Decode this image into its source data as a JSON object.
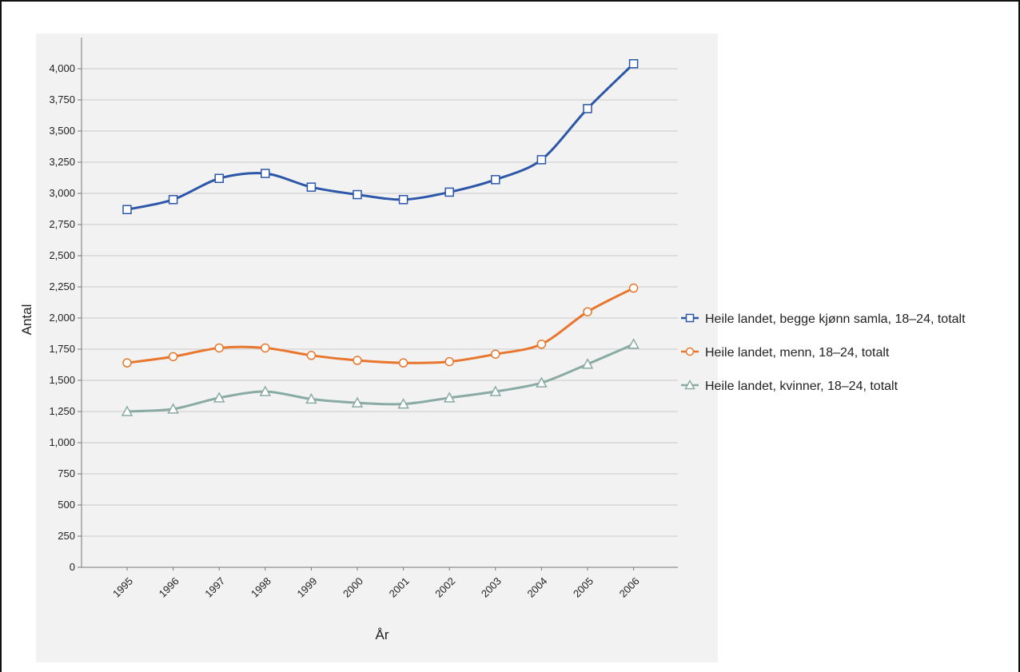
{
  "chart_data": {
    "type": "line",
    "title": "",
    "xlabel": "År",
    "ylabel": "Antal",
    "x": [
      "1995",
      "1996",
      "1997",
      "1998",
      "1999",
      "2000",
      "2001",
      "2002",
      "2003",
      "2004",
      "2005",
      "2006"
    ],
    "ylim": [
      0,
      4250
    ],
    "yticks": [
      0,
      250,
      500,
      750,
      1000,
      1250,
      1500,
      1750,
      2000,
      2250,
      2500,
      2750,
      3000,
      3250,
      3500,
      3750,
      4000
    ],
    "ytick_labels": [
      "0",
      "250",
      "500",
      "750",
      "1,000",
      "1,250",
      "1,500",
      "1,750",
      "2,000",
      "2,250",
      "2,500",
      "2,750",
      "3,000",
      "3,250",
      "3,500",
      "3,750",
      "4,000"
    ],
    "grid": true,
    "legend_position": "right",
    "series": [
      {
        "name": "Heile landet, begge kjønn samla, 18–24, totalt",
        "color": "#2c56a8",
        "marker": "square",
        "values": [
          2870,
          2950,
          3120,
          3160,
          3050,
          2990,
          2950,
          3010,
          3110,
          3270,
          3680,
          4040
        ]
      },
      {
        "name": "Heile landet, menn, 18–24, totalt",
        "color": "#e8762d",
        "marker": "circle",
        "values": [
          1640,
          1690,
          1760,
          1760,
          1700,
          1660,
          1640,
          1650,
          1710,
          1790,
          2050,
          2240
        ]
      },
      {
        "name": "Heile landet, kvinner, 18–24, totalt",
        "color": "#8aaba3",
        "marker": "triangle",
        "values": [
          1250,
          1270,
          1360,
          1410,
          1350,
          1320,
          1310,
          1360,
          1410,
          1480,
          1630,
          1790
        ]
      }
    ]
  }
}
